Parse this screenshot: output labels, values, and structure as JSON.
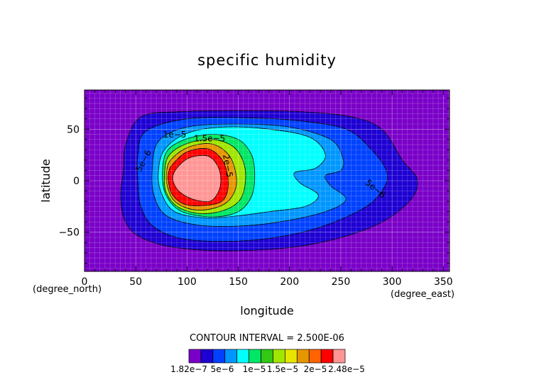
{
  "chart_data": {
    "type": "heatmap",
    "title": "specific humidity",
    "xlabel": "longitude",
    "ylabel": "latitude",
    "x_unit": "(degree_east)",
    "y_unit": "(degree_north)",
    "xlim": [
      0,
      356
    ],
    "ylim": [
      -88,
      88
    ],
    "x_ticks": [
      0,
      50,
      100,
      150,
      200,
      250,
      300,
      350
    ],
    "y_ticks": [
      -50,
      0,
      50
    ],
    "y_tick_labels": [
      "−50",
      "0",
      "50"
    ],
    "grid": true,
    "contour_interval_text": "CONTOUR INTERVAL = 2.500E-06",
    "colorbar": {
      "colors": [
        "#7a00c8",
        "#1e00d2",
        "#0041ff",
        "#0096ff",
        "#00ffff",
        "#00e665",
        "#32c814",
        "#a0e600",
        "#e6e600",
        "#e69600",
        "#ff6400",
        "#ff0000",
        "#ff9696"
      ],
      "labels": [
        "1.82e−7",
        "5e−6",
        "1e−5",
        "1.5e−5",
        "2e−5",
        "2.48e−5"
      ]
    },
    "contour_labels": [
      "1e−5",
      "1.5e−5",
      "5e−6",
      "5e−6",
      "2e−5"
    ],
    "fill_levels": [
      {
        "level": 2.5e-06,
        "color": "#1e00d2",
        "points": [
          [
            55,
            62
          ],
          [
            95,
            67
          ],
          [
            150,
            68
          ],
          [
            210,
            67
          ],
          [
            260,
            62
          ],
          [
            290,
            50
          ],
          [
            310,
            20
          ],
          [
            325,
            0
          ],
          [
            315,
            -22
          ],
          [
            280,
            -45
          ],
          [
            220,
            -62
          ],
          [
            150,
            -68
          ],
          [
            90,
            -65
          ],
          [
            55,
            -55
          ],
          [
            40,
            -40
          ],
          [
            35,
            -15
          ],
          [
            38,
            10
          ],
          [
            40,
            35
          ]
        ]
      },
      {
        "level": 5e-06,
        "color": "#0041ff",
        "points": [
          [
            60,
            48
          ],
          [
            100,
            60
          ],
          [
            160,
            61
          ],
          [
            210,
            58
          ],
          [
            255,
            50
          ],
          [
            280,
            30
          ],
          [
            295,
            8
          ],
          [
            290,
            -10
          ],
          [
            270,
            -28
          ],
          [
            220,
            -48
          ],
          [
            160,
            -58
          ],
          [
            100,
            -57
          ],
          [
            68,
            -45
          ],
          [
            55,
            -25
          ],
          [
            52,
            0
          ],
          [
            52,
            25
          ]
        ]
      },
      {
        "level": 7.5e-06,
        "color": "#0096ff",
        "points": [
          [
            72,
            38
          ],
          [
            100,
            52
          ],
          [
            150,
            55
          ],
          [
            200,
            52
          ],
          [
            240,
            40
          ],
          [
            252,
            22
          ],
          [
            250,
            10
          ],
          [
            235,
            5
          ],
          [
            240,
            -5
          ],
          [
            255,
            -18
          ],
          [
            235,
            -30
          ],
          [
            190,
            -40
          ],
          [
            150,
            -44
          ],
          [
            110,
            -43
          ],
          [
            80,
            -34
          ],
          [
            68,
            -15
          ],
          [
            66,
            10
          ]
        ]
      },
      {
        "level": 1e-05,
        "color": "#00ffff",
        "points": [
          [
            78,
            30
          ],
          [
            100,
            46
          ],
          [
            135,
            52
          ],
          [
            180,
            50
          ],
          [
            220,
            42
          ],
          [
            235,
            25
          ],
          [
            225,
            12
          ],
          [
            205,
            8
          ],
          [
            210,
            -2
          ],
          [
            228,
            -14
          ],
          [
            215,
            -25
          ],
          [
            180,
            -30
          ],
          [
            150,
            -34
          ],
          [
            118,
            -36
          ],
          [
            88,
            -30
          ],
          [
            75,
            -12
          ],
          [
            72,
            8
          ]
        ]
      },
      {
        "level": 1.25e-05,
        "color": "#00e665",
        "points": [
          [
            80,
            28
          ],
          [
            98,
            40
          ],
          [
            125,
            45
          ],
          [
            150,
            40
          ],
          [
            163,
            25
          ],
          [
            166,
            5
          ],
          [
            163,
            -15
          ],
          [
            150,
            -30
          ],
          [
            125,
            -35
          ],
          [
            95,
            -30
          ],
          [
            80,
            -15
          ],
          [
            76,
            5
          ]
        ]
      },
      {
        "level": 1.5e-05,
        "color": "#a0e600",
        "points": [
          [
            82,
            24
          ],
          [
            100,
            36
          ],
          [
            125,
            40
          ],
          [
            145,
            33
          ],
          [
            155,
            18
          ],
          [
            157,
            0
          ],
          [
            152,
            -18
          ],
          [
            138,
            -28
          ],
          [
            115,
            -32
          ],
          [
            92,
            -26
          ],
          [
            80,
            -12
          ],
          [
            78,
            5
          ]
        ]
      },
      {
        "level": 1.75e-05,
        "color": "#e69600",
        "points": [
          [
            84,
            20
          ],
          [
            100,
            32
          ],
          [
            122,
            36
          ],
          [
            138,
            28
          ],
          [
            146,
            14
          ],
          [
            148,
            -5
          ],
          [
            140,
            -20
          ],
          [
            125,
            -27
          ],
          [
            105,
            -28
          ],
          [
            88,
            -20
          ],
          [
            81,
            -6
          ],
          [
            80,
            8
          ]
        ]
      },
      {
        "level": 2e-05,
        "color": "#ff0000",
        "points": [
          [
            86,
            16
          ],
          [
            100,
            28
          ],
          [
            120,
            31
          ],
          [
            133,
            22
          ],
          [
            139,
            8
          ],
          [
            140,
            -8
          ],
          [
            134,
            -20
          ],
          [
            118,
            -24
          ],
          [
            98,
            -23
          ],
          [
            86,
            -14
          ],
          [
            82,
            -2
          ],
          [
            82,
            8
          ]
        ]
      },
      {
        "level": 2.25e-05,
        "color": "#ff9696",
        "points": [
          [
            90,
            12
          ],
          [
            102,
            22
          ],
          [
            120,
            24
          ],
          [
            130,
            14
          ],
          [
            133,
            0
          ],
          [
            130,
            -12
          ],
          [
            122,
            -20
          ],
          [
            106,
            -18
          ],
          [
            92,
            -10
          ],
          [
            86,
            2
          ]
        ]
      }
    ]
  }
}
